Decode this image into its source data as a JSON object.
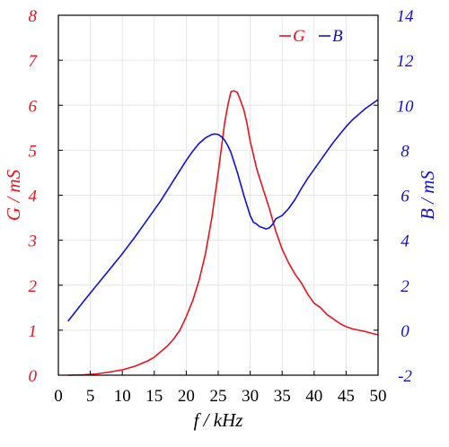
{
  "chart_data": {
    "type": "line",
    "xlabel": "f / kHz",
    "ylabel_left": "G / mS",
    "ylabel_right": "B / mS",
    "xlim": [
      0,
      50
    ],
    "ylim_left": [
      0,
      8
    ],
    "ylim_right": [
      -2,
      14
    ],
    "x_ticks": [
      "0",
      "5",
      "10",
      "15",
      "20",
      "25",
      "30",
      "35",
      "40",
      "45",
      "50"
    ],
    "y_left_ticks": [
      "0",
      "1",
      "2",
      "3",
      "4",
      "5",
      "6",
      "7",
      "8"
    ],
    "y_right_ticks": [
      "-2",
      "0",
      "2",
      "4",
      "6",
      "8",
      "10",
      "12",
      "14"
    ],
    "grid": true,
    "legend_position": "top-right",
    "colors": {
      "G": "#e8141e",
      "B": "#1010dd",
      "axis": "#000000",
      "grid": "#e6e6e6"
    },
    "series": [
      {
        "name": "G",
        "axis": "left",
        "color": "#e8141e",
        "x": [
          1.5,
          4,
          6,
          8,
          10,
          12,
          14,
          15,
          16,
          17,
          18,
          19,
          20,
          21,
          22,
          23,
          24,
          25,
          26,
          26.5,
          27,
          27.5,
          28,
          28.5,
          29,
          29.5,
          30,
          30.5,
          31,
          32,
          33,
          34,
          35,
          36,
          37,
          38,
          39,
          40,
          41,
          42,
          43,
          44,
          45,
          46,
          47,
          48,
          49,
          50
        ],
        "y": [
          0.0,
          0.01,
          0.03,
          0.07,
          0.12,
          0.2,
          0.32,
          0.4,
          0.52,
          0.64,
          0.8,
          1.0,
          1.3,
          1.65,
          2.1,
          2.7,
          3.5,
          4.5,
          5.6,
          6.0,
          6.3,
          6.32,
          6.28,
          6.1,
          5.9,
          5.6,
          5.2,
          4.9,
          4.6,
          4.15,
          3.7,
          3.2,
          2.8,
          2.5,
          2.25,
          2.05,
          1.8,
          1.6,
          1.5,
          1.35,
          1.25,
          1.15,
          1.08,
          1.03,
          1.0,
          0.97,
          0.93,
          0.9
        ]
      },
      {
        "name": "B",
        "axis": "right",
        "color": "#1010dd",
        "x": [
          1.5,
          4,
          6,
          8,
          10,
          12,
          14,
          16,
          18,
          20,
          21,
          22,
          23,
          24,
          24.5,
          25,
          25.5,
          26,
          26.5,
          27,
          28,
          29,
          30,
          30.5,
          31,
          31.5,
          32,
          32.5,
          33,
          33.5,
          34,
          35,
          36,
          37,
          38,
          39,
          40,
          41,
          42,
          43,
          44,
          45,
          46,
          47,
          48,
          49,
          50
        ],
        "y": [
          0.4,
          1.3,
          2.0,
          2.7,
          3.4,
          4.15,
          4.95,
          5.75,
          6.65,
          7.55,
          7.95,
          8.3,
          8.55,
          8.7,
          8.72,
          8.7,
          8.6,
          8.45,
          8.2,
          7.9,
          7.0,
          6.0,
          5.1,
          4.8,
          4.72,
          4.6,
          4.55,
          4.5,
          4.55,
          4.7,
          4.95,
          5.1,
          5.4,
          5.8,
          6.3,
          6.75,
          7.15,
          7.55,
          7.95,
          8.35,
          8.7,
          9.05,
          9.35,
          9.6,
          9.85,
          10.05,
          10.25
        ]
      }
    ]
  }
}
